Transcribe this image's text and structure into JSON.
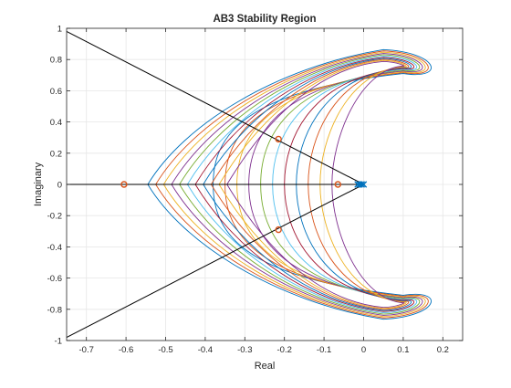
{
  "chart_data": {
    "type": "line",
    "title": "AB3 Stability Region",
    "xlabel": "Real",
    "ylabel": "Imaginary",
    "xlim": [
      -0.75,
      0.25
    ],
    "ylim": [
      -1,
      1
    ],
    "xticks": [
      -0.7,
      -0.6,
      -0.5,
      -0.4,
      -0.3,
      -0.2,
      -0.1,
      0,
      0.1,
      0.2
    ],
    "yticks": [
      -1,
      -0.8,
      -0.6,
      -0.4,
      -0.2,
      0,
      0.2,
      0.4,
      0.6,
      0.8,
      1
    ],
    "xtick_labels": [
      "-0.7",
      "-0.6",
      "-0.5",
      "-0.4",
      "-0.3",
      "-0.2",
      "-0.1",
      "0",
      "0.1",
      "0.2"
    ],
    "ytick_labels": [
      "-1",
      "-0.8",
      "-0.6",
      "-0.4",
      "-0.2",
      "0",
      "0.2",
      "0.4",
      "0.6",
      "0.8",
      "1"
    ],
    "grid": true,
    "boundary_curves": {
      "left_tip_x": [
        -0.545,
        -0.525,
        -0.505,
        -0.485,
        -0.465,
        -0.445,
        -0.425,
        -0.405,
        -0.385,
        -0.365,
        -0.345
      ],
      "right_tip_x": [
        0.21,
        0.2,
        0.19,
        0.18,
        0.17,
        0.16,
        0.15,
        0.14,
        0.13,
        0.12,
        0.11
      ],
      "waist_x": [
        -0.38,
        -0.35,
        -0.32,
        -0.29,
        -0.26,
        -0.23,
        -0.2,
        -0.17,
        -0.14,
        -0.11,
        -0.08
      ],
      "lobe_half_height": [
        0.17,
        0.155,
        0.14,
        0.125,
        0.11,
        0.095,
        0.08,
        0.068,
        0.056,
        0.044,
        0.032
      ],
      "focus": [
        0.1,
        0.77
      ]
    },
    "radial_lines": {
      "origin": [
        0,
        0
      ],
      "endpoints": [
        [
          -0.75,
          0.98
        ],
        [
          -0.75,
          0
        ],
        [
          -0.75,
          -0.98
        ]
      ]
    },
    "markers": {
      "circles": [
        [
          -0.605,
          0
        ],
        [
          -0.215,
          0.29
        ],
        [
          -0.215,
          -0.29
        ],
        [
          -0.065,
          0
        ]
      ],
      "crosses": [
        [
          -0.015,
          0
        ],
        [
          -0.01,
          0
        ],
        [
          -0.005,
          0
        ],
        [
          0,
          0
        ]
      ]
    },
    "colors": {
      "series": [
        "#0072BD",
        "#D95319",
        "#EDB120",
        "#7E2F8E",
        "#77AC30",
        "#4DBEEE",
        "#A2142F"
      ],
      "lines": "#000000",
      "circle_marker": "#D95319",
      "cross_marker": "#0072BD",
      "grid": "#e6e6e6",
      "axes": "#262626"
    }
  }
}
